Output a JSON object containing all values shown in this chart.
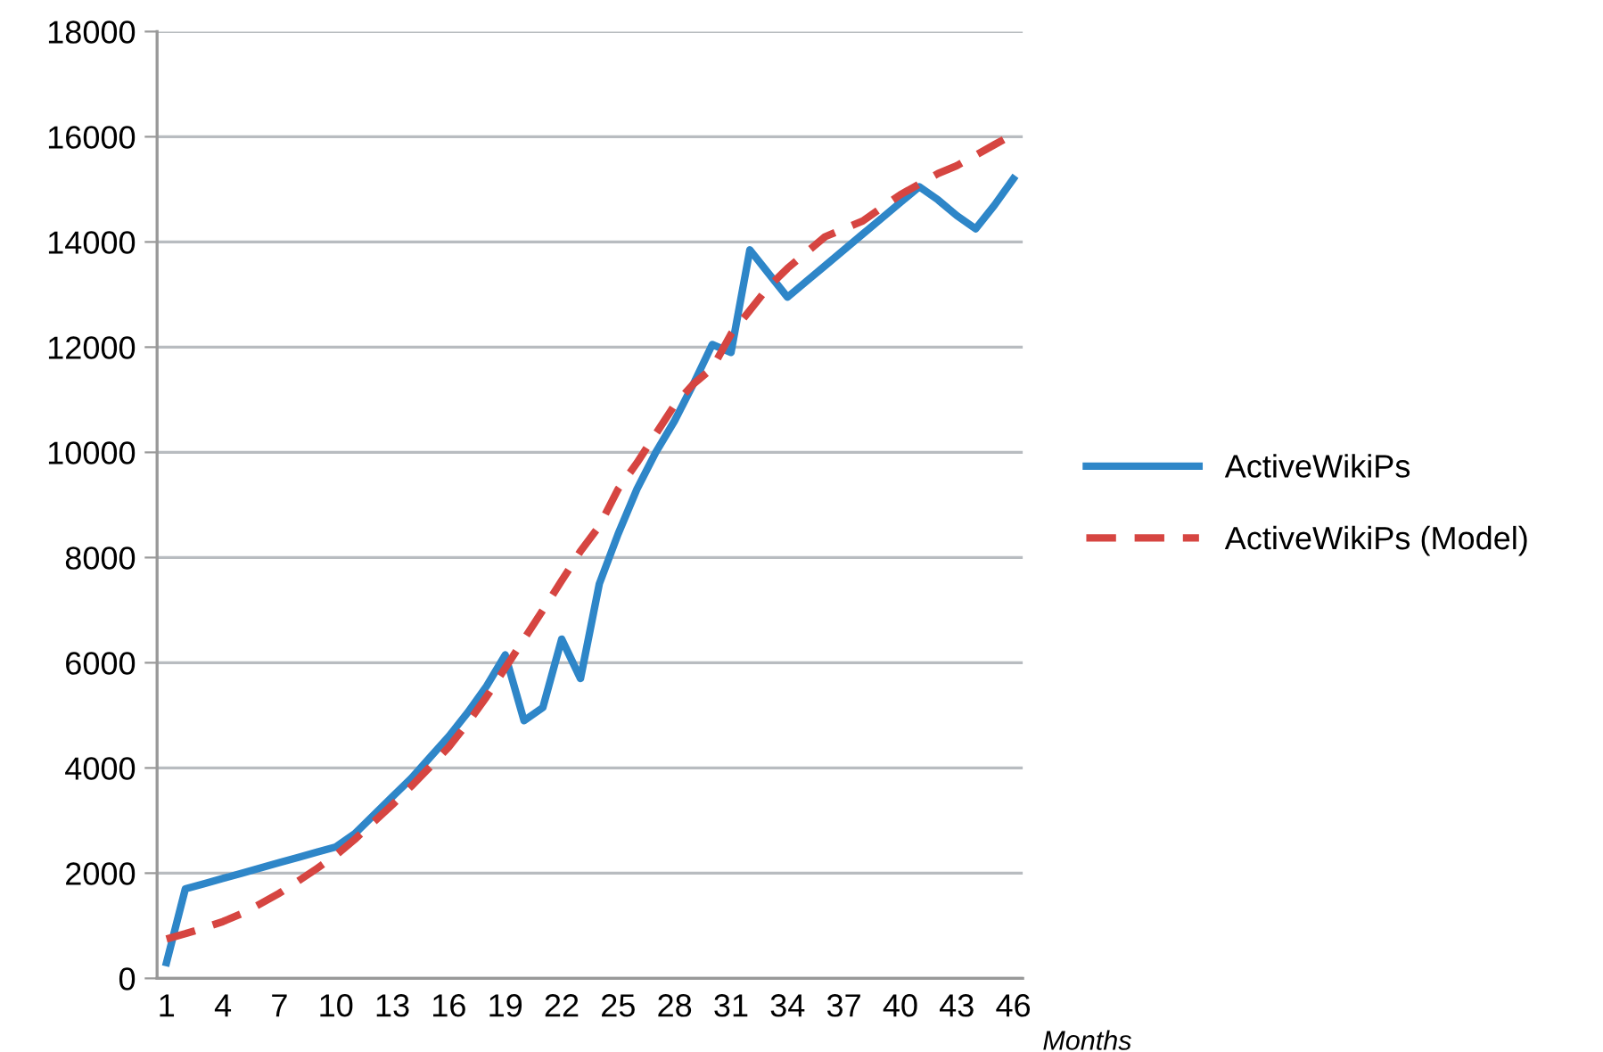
{
  "chart_data": {
    "type": "line",
    "xlabel": "Months",
    "categories": [
      "1",
      null,
      null,
      "4",
      null,
      null,
      "7",
      null,
      null,
      "10",
      null,
      null,
      "13",
      null,
      null,
      "16",
      null,
      null,
      "19",
      null,
      null,
      "22",
      null,
      null,
      "25",
      null,
      null,
      "28",
      null,
      null,
      "31",
      null,
      null,
      "34",
      null,
      null,
      "37",
      null,
      null,
      "40",
      null,
      null,
      "43",
      null,
      null,
      "46"
    ],
    "series": [
      {
        "name": "ActiveWikiPs",
        "color": "#2e86c8",
        "line_style": "solid",
        "values": [
          300,
          1700,
          1800,
          1900,
          2000,
          2100,
          2200,
          2300,
          2400,
          2500,
          2750,
          3100,
          3450,
          3800,
          4200,
          4600,
          5050,
          5550,
          6150,
          4900,
          5150,
          6450,
          5700,
          7500,
          8450,
          9300,
          10000,
          10600,
          11300,
          12050,
          11900,
          13850,
          13400,
          12950,
          13250,
          13550,
          13850,
          14150,
          14450,
          14750,
          15050,
          14800,
          14500,
          14250,
          14700,
          15200
        ]
      },
      {
        "name": "ActiveWikiPs (Model)",
        "color": "#d64541",
        "line_style": "dashed",
        "values": [
          750,
          850,
          960,
          1080,
          1230,
          1420,
          1620,
          1850,
          2090,
          2340,
          2640,
          2970,
          3300,
          3650,
          4020,
          4400,
          4850,
          5350,
          5900,
          6450,
          7000,
          7560,
          8120,
          8600,
          9300,
          9800,
          10350,
          10900,
          11300,
          11600,
          12250,
          12700,
          13150,
          13500,
          13800,
          14100,
          14250,
          14400,
          14650,
          14900,
          15100,
          15300,
          15450,
          15650,
          15850,
          16050
        ]
      }
    ],
    "ylim": [
      0,
      18000
    ],
    "yticks": [
      0,
      2000,
      4000,
      6000,
      8000,
      10000,
      12000,
      14000,
      16000,
      18000
    ],
    "grid": "y",
    "legend": "right",
    "marker": "none"
  }
}
